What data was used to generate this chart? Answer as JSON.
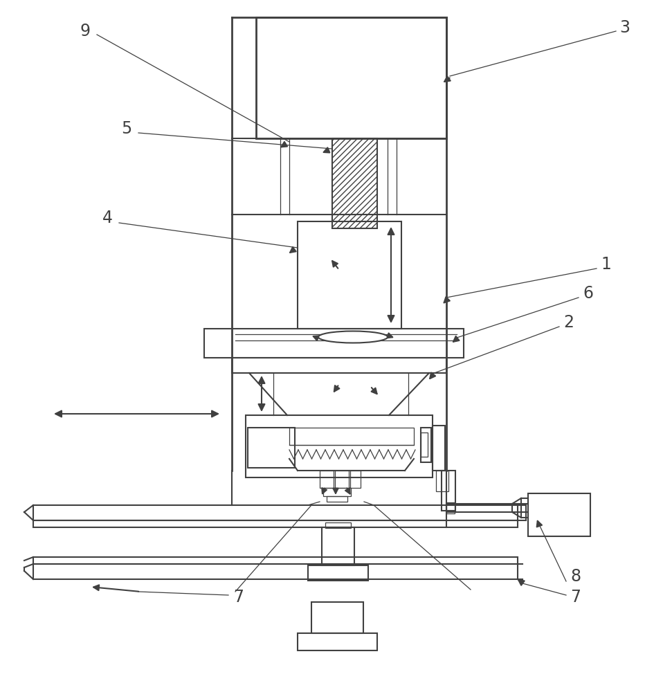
{
  "bg_color": "#ffffff",
  "lc": "#404040",
  "lw": 1.5,
  "tlw": 0.9,
  "fig_w": 9.58,
  "fig_h": 10.0
}
